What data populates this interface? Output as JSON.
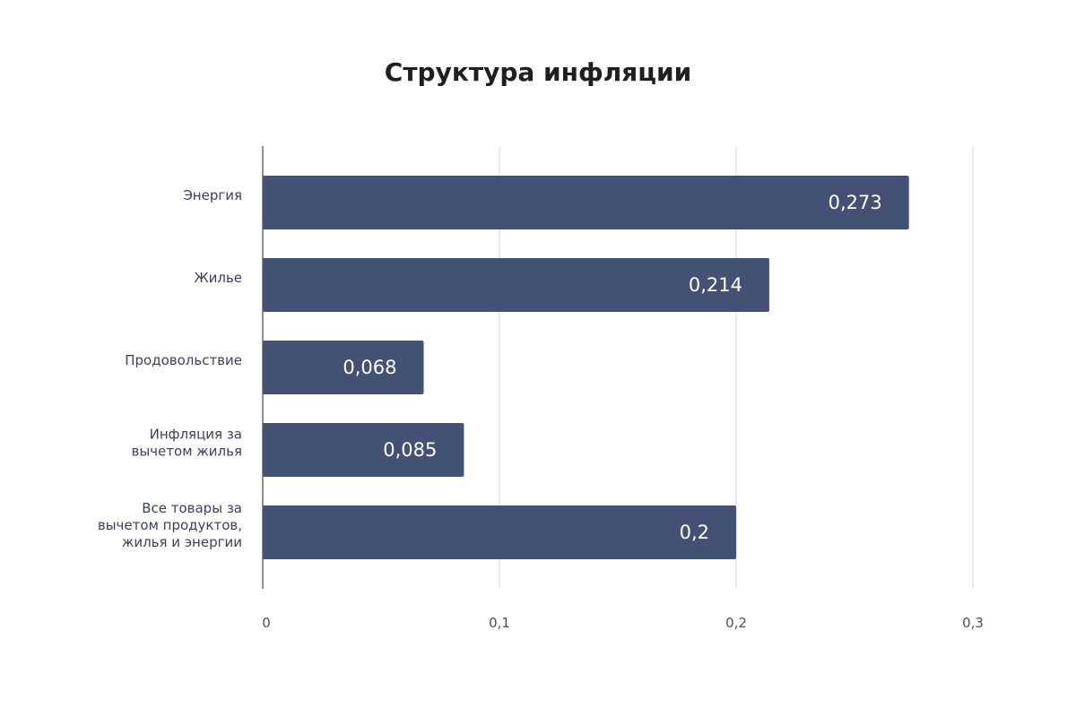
{
  "chart_data": {
    "type": "bar",
    "orientation": "horizontal",
    "title": "Структура инфляции",
    "xlabel": "",
    "ylabel": "",
    "categories": [
      [
        "Энергия"
      ],
      [
        "Жилье"
      ],
      [
        "Продовольствие"
      ],
      [
        "Инфляция за",
        "вычетом жилья"
      ],
      [
        "Все товары за",
        "вычетом продуктов,",
        "жилья и энергии"
      ]
    ],
    "values": [
      0.273,
      0.214,
      0.068,
      0.085,
      0.2
    ],
    "value_labels": [
      "0,273",
      "0,214",
      "0,068",
      "0,085",
      "0,2"
    ],
    "xlim": [
      0,
      0.3
    ],
    "ticks": [
      0,
      0.1,
      0.2,
      0.3
    ],
    "tick_labels": [
      "0",
      "0,1",
      "0,2",
      "0,3"
    ],
    "grid": "vertical",
    "legend": "none"
  },
  "colors": {
    "bar": "#435274",
    "grid": "#d6d6d6",
    "axis": "#555555"
  }
}
